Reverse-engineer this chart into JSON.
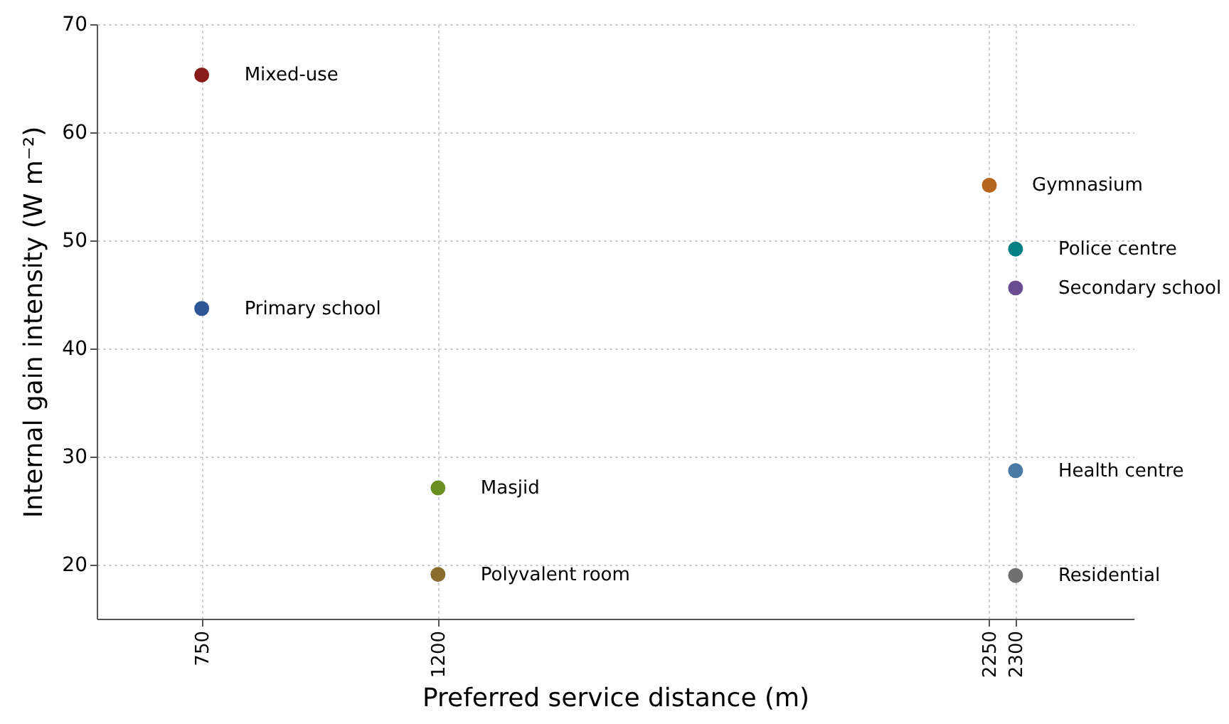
{
  "chart_data": {
    "type": "scatter",
    "xlabel": "Preferred service distance (m)",
    "ylabel": "Internal gain intensity (W m⁻²)",
    "xlim": [
      550,
      2525
    ],
    "xticks": [
      750,
      1200,
      2250,
      2300
    ],
    "ylim": [
      15,
      70
    ],
    "yticks": [
      20,
      30,
      40,
      50,
      60,
      70
    ],
    "grid": true,
    "marker": "circle",
    "series": [
      {
        "name": "Mixed-use",
        "color": "#8b1a1a",
        "x": [
          750
        ],
        "values": [
          65.3
        ]
      },
      {
        "name": "Primary school",
        "color": "#2e5596",
        "x": [
          750
        ],
        "values": [
          43.7
        ]
      },
      {
        "name": "Masjid",
        "color": "#6b8e23",
        "x": [
          1200
        ],
        "values": [
          27.1
        ]
      },
      {
        "name": "Polyvalent room",
        "color": "#8b6c2f",
        "x": [
          1200
        ],
        "values": [
          19.1
        ]
      },
      {
        "name": "Gymnasium",
        "color": "#b5651d",
        "x": [
          2250
        ],
        "values": [
          55.1
        ]
      },
      {
        "name": "Police centre",
        "color": "#008080",
        "x": [
          2300
        ],
        "values": [
          49.2
        ]
      },
      {
        "name": "Secondary school",
        "color": "#6a4c93",
        "x": [
          2300
        ],
        "values": [
          45.6
        ]
      },
      {
        "name": "Health centre",
        "color": "#4a7aa6",
        "x": [
          2300
        ],
        "values": [
          28.7
        ]
      },
      {
        "name": "Residential",
        "color": "#707070",
        "x": [
          2300
        ],
        "values": [
          19.0
        ]
      }
    ]
  }
}
